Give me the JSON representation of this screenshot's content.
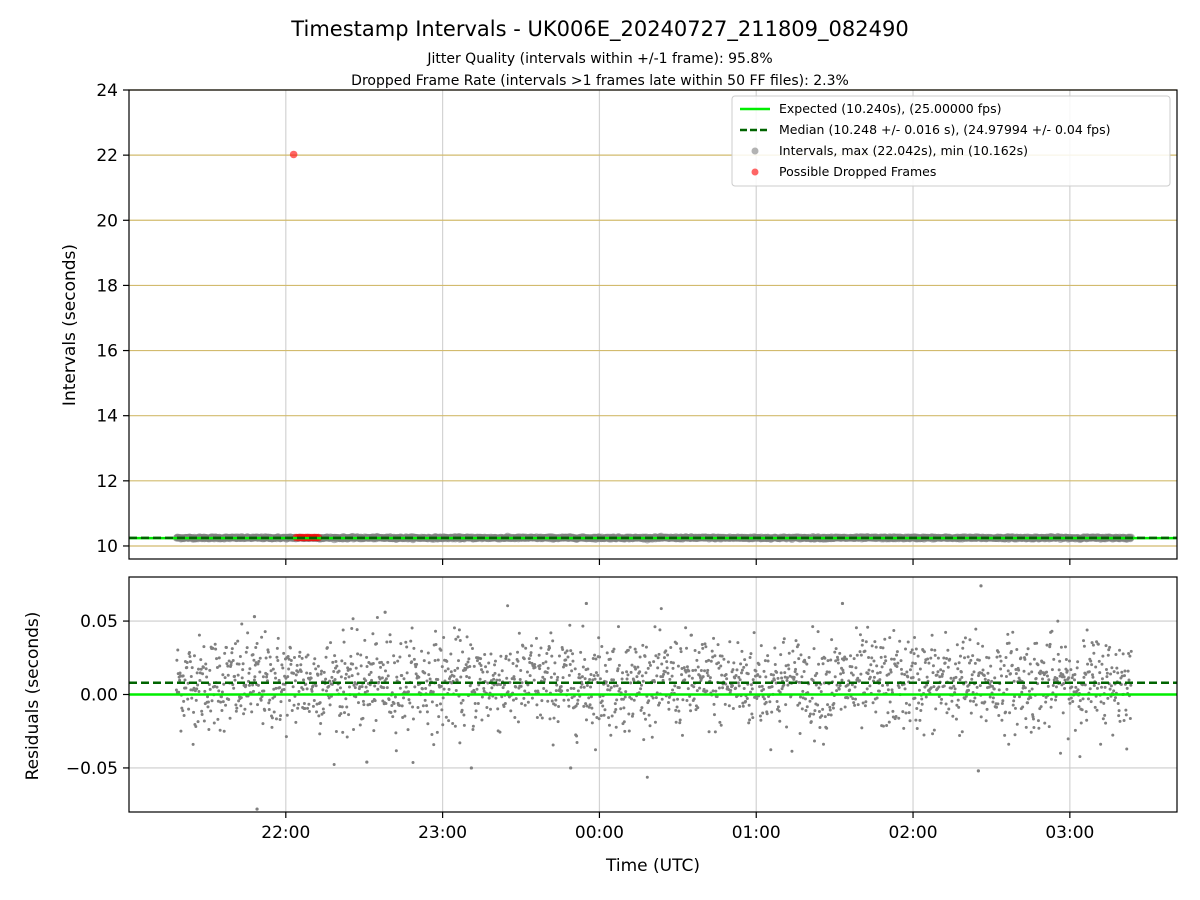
{
  "title": "Timestamp Intervals - UK006E_20240727_211809_082490",
  "subtitle_1": "Jitter Quality (intervals within +/-1 frame): 95.8%",
  "subtitle_2": "Dropped Frame Rate (intervals >1 frames late within 50 FF files): 2.3%",
  "colors": {
    "expected": "#00ee00",
    "median": "#006400",
    "intervals": "#808080",
    "dropped": "#ff0000",
    "grid_x": "#d3d3d3",
    "grid_y_top": "#d2bb6e",
    "grid_y_bottom": "#cccccc"
  },
  "chart_data": [
    {
      "type": "scatter",
      "name": "intervals_panel",
      "ylabel": "Intervals (seconds)",
      "xlabel": "",
      "x_axis": "time (UTC)",
      "xlim": [
        "2024-07-27T21:00:00Z",
        "2024-07-28T03:41:00Z"
      ],
      "ylim": [
        9.6,
        24
      ],
      "yticks": [
        10,
        12,
        14,
        16,
        18,
        20,
        22,
        24
      ],
      "grid": true,
      "legend_position": "top-right",
      "legend": [
        "Expected (10.240s), (25.00000 fps)",
        "Median (10.248 +/- 0.016 s), (24.97994 +/- 0.04 fps)",
        "Intervals, max (22.042s), min (10.162s)",
        "Possible Dropped Frames"
      ],
      "expected_line": 10.24,
      "median_line": 10.248,
      "intervals_series": {
        "time_range": [
          "2024-07-27T21:18:09Z",
          "2024-07-28T03:23:30Z"
        ],
        "approx_count": 2120,
        "median": 10.248,
        "std": 0.016,
        "max": 22.042,
        "min": 10.162
      },
      "dropped_frames_points": [
        {
          "t": "2024-07-27T22:03:00Z",
          "y": 22.02
        },
        {
          "t": "2024-07-27T22:04:00Z",
          "y": 10.26
        },
        {
          "t": "2024-07-27T22:05:00Z",
          "y": 10.26
        },
        {
          "t": "2024-07-27T22:05:50Z",
          "y": 10.26
        },
        {
          "t": "2024-07-27T22:06:40Z",
          "y": 10.26
        },
        {
          "t": "2024-07-27T22:07:30Z",
          "y": 10.26
        },
        {
          "t": "2024-07-27T22:08:20Z",
          "y": 10.26
        },
        {
          "t": "2024-07-27T22:09:10Z",
          "y": 10.26
        },
        {
          "t": "2024-07-27T22:10:00Z",
          "y": 10.26
        },
        {
          "t": "2024-07-27T22:10:50Z",
          "y": 10.26
        },
        {
          "t": "2024-07-27T22:11:40Z",
          "y": 10.26
        },
        {
          "t": "2024-07-27T22:12:30Z",
          "y": 10.26
        }
      ]
    },
    {
      "type": "scatter",
      "name": "residuals_panel",
      "ylabel": "Residuals (seconds)",
      "xlabel": "Time (UTC)",
      "xlim": [
        "2024-07-27T21:00:00Z",
        "2024-07-28T03:41:00Z"
      ],
      "xticks": [
        {
          "label": "22:00",
          "t": "2024-07-27T22:00:00Z"
        },
        {
          "label": "23:00",
          "t": "2024-07-27T23:00:00Z"
        },
        {
          "label": "00:00",
          "t": "2024-07-28T00:00:00Z"
        },
        {
          "label": "01:00",
          "t": "2024-07-28T01:00:00Z"
        },
        {
          "label": "02:00",
          "t": "2024-07-28T02:00:00Z"
        },
        {
          "label": "03:00",
          "t": "2024-07-28T03:00:00Z"
        }
      ],
      "ylim": [
        -0.08,
        0.08
      ],
      "yticks": [
        {
          "label": "0.05",
          "v": 0.05
        },
        {
          "label": "0.00",
          "v": 0.0
        },
        {
          "label": "−0.05",
          "v": -0.05
        }
      ],
      "grid": true,
      "expected_line": 0.0,
      "median_line": 0.008,
      "residuals_series": {
        "approx_count": 2120,
        "center": 0.008,
        "std": 0.016
      },
      "notable_points": [
        {
          "t": "2024-07-27T21:49:00Z",
          "y": -0.078
        },
        {
          "t": "2024-07-27T21:48:00Z",
          "y": 0.053
        },
        {
          "t": "2024-07-27T22:38:00Z",
          "y": 0.056
        },
        {
          "t": "2024-07-27T23:55:00Z",
          "y": 0.062
        },
        {
          "t": "2024-07-28T01:33:00Z",
          "y": 0.062
        },
        {
          "t": "2024-07-28T02:26:00Z",
          "y": 0.074
        },
        {
          "t": "2024-07-28T02:25:00Z",
          "y": -0.052
        },
        {
          "t": "2024-07-27T23:11:00Z",
          "y": -0.05
        },
        {
          "t": "2024-07-27T23:49:00Z",
          "y": -0.05
        },
        {
          "t": "2024-07-27T22:31:00Z",
          "y": -0.046
        }
      ]
    }
  ]
}
